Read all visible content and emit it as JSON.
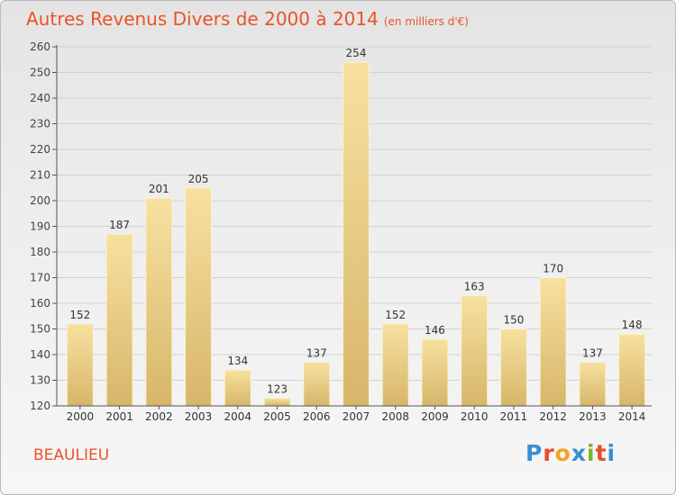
{
  "header": {
    "title": "Autres Revenus Divers de 2000 à 2014",
    "unit": "(en milliers d'€)"
  },
  "footer": {
    "city": "BEAULIEU",
    "logo_text": "Proxiti"
  },
  "colors": {
    "title": "#ea5328",
    "bar_light": "#f7e1a0",
    "bar_dark": "#d7b66a",
    "logo_letters": [
      "#3a8fd0",
      "#e84d2a",
      "#f2a423",
      "#3a8fd0",
      "#76b82a",
      "#e84d2a",
      "#3a8fd0"
    ]
  },
  "chart_data": {
    "type": "bar",
    "title": "Autres Revenus Divers de 2000 à 2014",
    "xlabel": "",
    "ylabel": "",
    "categories": [
      "2000",
      "2001",
      "2002",
      "2003",
      "2004",
      "2005",
      "2006",
      "2007",
      "2008",
      "2009",
      "2010",
      "2011",
      "2012",
      "2013",
      "2014"
    ],
    "values": [
      152,
      187,
      201,
      205,
      134,
      123,
      137,
      254,
      152,
      146,
      163,
      150,
      170,
      137,
      148
    ],
    "ylim": [
      120,
      260
    ],
    "yticks": [
      120,
      130,
      140,
      150,
      160,
      170,
      180,
      190,
      200,
      210,
      220,
      230,
      240,
      250,
      260
    ],
    "grid": true,
    "data_labels": true
  }
}
